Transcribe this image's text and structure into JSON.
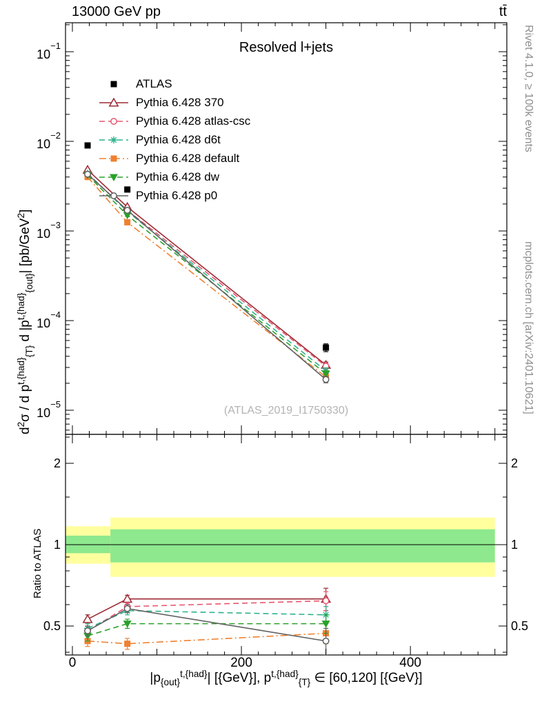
{
  "header": {
    "left": "13000 GeV pp",
    "right": "tt̄"
  },
  "title": "Resolved l+jets",
  "watermark": "(ATLAS_2019_I1750330)",
  "side_notes": {
    "rivet": "Rivet 4.1.0, ≥ 100k events",
    "mcplots": "mcplots.cern.ch [arXiv:2401.10621]"
  },
  "labels": {
    "ylabel_ratio": "Ratio to ATLAS",
    "ylabel_top_segments": [
      {
        "t": "d"
      },
      {
        "t": "2",
        "s": "sup"
      },
      {
        "t": "σ / d p"
      },
      {
        "t": "t,{had}",
        "s": "sup"
      },
      {
        "t": "{T}",
        "s": "sub"
      },
      {
        "t": " d |p"
      },
      {
        "t": "t,{had}",
        "s": "sup"
      },
      {
        "t": "{out}",
        "s": "sub"
      },
      {
        "t": "| [pb/GeV"
      },
      {
        "t": "2",
        "s": "sup"
      },
      {
        "t": "]"
      }
    ],
    "xlabel_segments": [
      {
        "t": "|p"
      },
      {
        "t": "{out}",
        "s": "sub"
      },
      {
        "t": "t,{had}",
        "s": "sup"
      },
      {
        "t": "| [{GeV}], p"
      },
      {
        "t": "t,{had}",
        "s": "sup"
      },
      {
        "t": "{T}",
        "s": "sub"
      },
      {
        "t": " ∈ [60,120] [{GeV}]"
      }
    ]
  },
  "axes": {
    "xlim": [
      0,
      515
    ],
    "x_ticks_major": [
      0,
      200,
      400
    ],
    "x_tick_labels": [
      "0",
      "200",
      "400"
    ],
    "x_ticks_medium": [
      100,
      300,
      500
    ],
    "x_minor_step": 20,
    "top_ylim": [
      5.5e-06,
      0.21
    ],
    "top_y_decades": [
      -1,
      -2,
      -3,
      -4,
      -5
    ],
    "ratio_ticks": [
      0.5,
      1,
      2
    ],
    "ratio_tick_labels": [
      "0.5",
      "1",
      "2"
    ],
    "ratio_minor_ticks": [
      0.4,
      0.6,
      0.7,
      0.8,
      0.9,
      1.5,
      2.5
    ],
    "ratio_ylim": [
      0.39,
      2.56
    ]
  },
  "chart_data": {
    "type": "line",
    "title": "Resolved l+jets",
    "xlabel": "|p_{out}^{t,{had}}| [{GeV}], p_{T}^{t,{had}} in [60,120] [{GeV}]",
    "ylabel": "d2sigma / d p_T^{t,had} d |p_out^{t,had}| [pb/GeV2]",
    "ratio_ylabel": "Ratio to ATLAS",
    "x": [
      18,
      65,
      300
    ],
    "x_bin_edges": [
      0,
      45,
      90,
      500
    ],
    "band_colors": {
      "yellow": "#ffff9e",
      "green": "#8ee88e"
    },
    "ratio_bands": [
      {
        "x0": 0,
        "x1": 45,
        "yellow": [
          0.85,
          1.17
        ],
        "green": [
          0.93,
          1.08
        ]
      },
      {
        "x0": 45,
        "x1": 500,
        "yellow": [
          0.76,
          1.26
        ],
        "green": [
          0.86,
          1.14
        ]
      }
    ],
    "series": [
      {
        "name": "ATLAS",
        "slug": "atlas",
        "color": "#000000",
        "marker": "square-filled",
        "line": "none",
        "values": [
          0.009,
          0.0029,
          5e-05
        ],
        "yerr": [
          0.0005,
          0.00015,
          5e-06
        ]
      },
      {
        "name": "Pythia 6.428 370",
        "slug": "p370",
        "color": "#9e2a33",
        "marker": "triangle-up-open",
        "line": "solid",
        "values": [
          0.0048,
          0.00185,
          3.2e-05
        ],
        "yerr": [
          0.00012,
          5e-05,
          2.5e-06
        ],
        "ratio": [
          0.53,
          0.63,
          0.63
        ],
        "ratio_err": [
          0.02,
          0.02,
          0.06
        ]
      },
      {
        "name": "Pythia 6.428 atlas-csc",
        "slug": "atlas-csc",
        "color": "#e8546d",
        "marker": "circle-open",
        "line": "dashed",
        "values": [
          0.0043,
          0.0017,
          3.1e-05
        ],
        "yerr": [
          0.00011,
          4e-05,
          2.4e-06
        ],
        "ratio": [
          0.48,
          0.59,
          0.62
        ],
        "ratio_err": [
          0.02,
          0.02,
          0.05
        ]
      },
      {
        "name": "Pythia 6.428 d6t",
        "slug": "d6t",
        "color": "#2ab28a",
        "marker": "asterisk",
        "line": "dashed",
        "values": [
          0.0044,
          0.00165,
          2.75e-05
        ],
        "yerr": [
          0.00011,
          4e-05,
          2.2e-06
        ],
        "ratio": [
          0.49,
          0.57,
          0.55
        ],
        "ratio_err": [
          0.02,
          0.02,
          0.04
        ]
      },
      {
        "name": "Pythia 6.428 default",
        "slug": "default",
        "color": "#f08030",
        "marker": "square-filled",
        "line": "dashdot",
        "values": [
          0.004,
          0.00125,
          2.35e-05
        ],
        "yerr": [
          0.0001,
          3.5e-05,
          2e-06
        ],
        "ratio": [
          0.44,
          0.43,
          0.47
        ],
        "ratio_err": [
          0.02,
          0.02,
          0.04
        ]
      },
      {
        "name": "Pythia 6.428 dw",
        "slug": "dw",
        "color": "#2aa02a",
        "marker": "triangle-down-filled",
        "line": "dashed",
        "values": [
          0.0042,
          0.0015,
          2.55e-05
        ],
        "yerr": [
          0.00011,
          4e-05,
          2e-06
        ],
        "ratio": [
          0.46,
          0.51,
          0.51
        ],
        "ratio_err": [
          0.02,
          0.02,
          0.04
        ]
      },
      {
        "name": "Pythia 6.428 p0",
        "slug": "p0",
        "color": "#606060",
        "marker": "circle-open",
        "line": "solid",
        "values": [
          0.0043,
          0.0017,
          2.2e-05
        ],
        "yerr": [
          0.00011,
          4e-05,
          1.8e-06
        ],
        "ratio": [
          0.48,
          0.58,
          0.44
        ],
        "ratio_err": [
          0.02,
          0.02,
          0.05
        ]
      }
    ]
  }
}
